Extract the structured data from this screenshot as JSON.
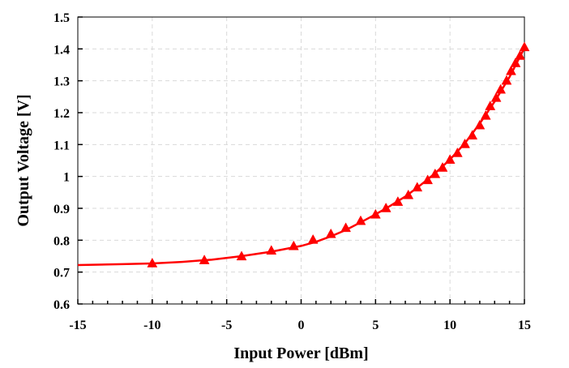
{
  "chart_data": {
    "type": "line",
    "title": "",
    "xlabel": "Input Power [dBm]",
    "ylabel": "Output Voltage [V]",
    "xlim": [
      -15,
      15
    ],
    "ylim": [
      0.6,
      1.5
    ],
    "x_ticks": [
      -15,
      -10,
      -5,
      0,
      5,
      10,
      15
    ],
    "x_tick_labels": [
      "-15",
      "-10",
      "-5",
      "0",
      "5",
      "10",
      "15"
    ],
    "y_ticks": [
      0.6,
      0.7,
      0.8,
      0.9,
      1.0,
      1.1,
      1.2,
      1.3,
      1.4,
      1.5
    ],
    "y_tick_labels": [
      "0.6",
      "0.7",
      "0.8",
      "0.9",
      "1",
      "1.1",
      "1.2",
      "1.3",
      "1.4",
      "1.5"
    ],
    "grid": true,
    "legend": "none",
    "series": [
      {
        "style": "line",
        "color": "#ff0000",
        "x": [
          -15,
          -12,
          -10,
          -8,
          -6,
          -4,
          -2,
          0,
          1,
          2,
          3,
          4,
          5,
          6,
          7,
          8,
          9,
          10,
          11,
          12,
          13,
          14,
          15
        ],
        "y": [
          0.722,
          0.725,
          0.727,
          0.732,
          0.739,
          0.75,
          0.764,
          0.782,
          0.795,
          0.812,
          0.832,
          0.856,
          0.881,
          0.908,
          0.937,
          0.972,
          1.01,
          1.053,
          1.104,
          1.166,
          1.235,
          1.312,
          1.403
        ]
      },
      {
        "style": "markers",
        "marker": "triangle",
        "color": "#ff0000",
        "x": [
          -10,
          -6.5,
          -4,
          -2,
          -0.5,
          0.8,
          2,
          3,
          4,
          5,
          5.7,
          6.5,
          7.2,
          7.8,
          8.5,
          9,
          9.5,
          10,
          10.5,
          11,
          11.5,
          12,
          12.4,
          12.7,
          13.1,
          13.4,
          13.8,
          14.1,
          14.4,
          14.7,
          15
        ],
        "y": [
          0.727,
          0.737,
          0.749,
          0.767,
          0.781,
          0.801,
          0.819,
          0.838,
          0.86,
          0.88,
          0.9,
          0.92,
          0.941,
          0.965,
          0.988,
          1.007,
          1.027,
          1.052,
          1.073,
          1.101,
          1.128,
          1.16,
          1.19,
          1.22,
          1.246,
          1.272,
          1.3,
          1.33,
          1.355,
          1.378,
          1.405
        ]
      }
    ]
  }
}
